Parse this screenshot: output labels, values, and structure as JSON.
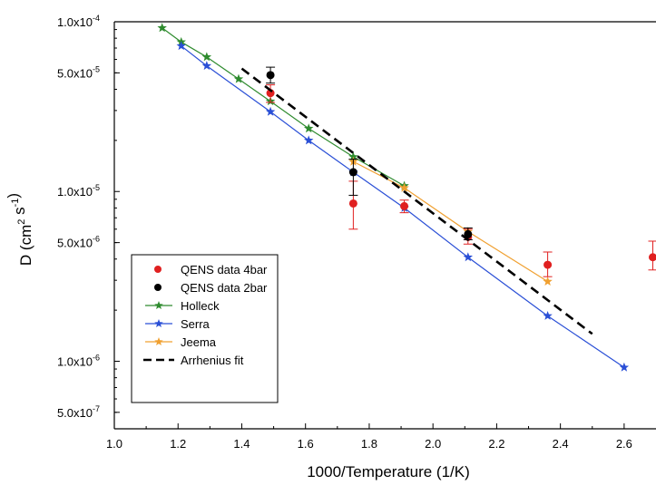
{
  "chart_data": {
    "type": "scatter",
    "title": "",
    "xlabel": "1000/Temperature (1/K)",
    "ylabel_base": "D (cm",
    "ylabel_sup1": "2",
    "ylabel_mid": " s",
    "ylabel_sup2": "-1",
    "ylabel_end": ")",
    "xlim": [
      1.0,
      2.7
    ],
    "ylim": [
      4e-07,
      0.0001
    ],
    "yscale": "log",
    "grid": false,
    "legend_position": "bottom-left",
    "x_ticks": [
      {
        "value": 1.0,
        "label": "1.0"
      },
      {
        "value": 1.2,
        "label": "1.2"
      },
      {
        "value": 1.4,
        "label": "1.4"
      },
      {
        "value": 1.6,
        "label": "1.6"
      },
      {
        "value": 1.8,
        "label": "1.8"
      },
      {
        "value": 2.0,
        "label": "2.0"
      },
      {
        "value": 2.2,
        "label": "2.2"
      },
      {
        "value": 2.4,
        "label": "2.4"
      },
      {
        "value": 2.6,
        "label": "2.6"
      }
    ],
    "y_ticks": [
      {
        "value": 0.0001,
        "label": "1.0x10",
        "exp": "-4"
      },
      {
        "value": 5e-05,
        "label": "5.0x10",
        "exp": "-5"
      },
      {
        "value": 1e-05,
        "label": "1.0x10",
        "exp": "-5"
      },
      {
        "value": 5e-06,
        "label": "5.0x10",
        "exp": "-6"
      },
      {
        "value": 1e-06,
        "label": "1.0x10",
        "exp": "-6"
      },
      {
        "value": 5e-07,
        "label": "5.0x10",
        "exp": "-7"
      }
    ],
    "series": [
      {
        "name": "Holleck",
        "style": "line-star",
        "color": "#2e8b2e",
        "x": [
          1.15,
          1.21,
          1.29,
          1.39,
          1.49,
          1.61,
          1.75,
          1.91
        ],
        "y": [
          9.2e-05,
          7.6e-05,
          6.2e-05,
          4.6e-05,
          3.4e-05,
          2.35e-05,
          1.6e-05,
          1.08e-05
        ]
      },
      {
        "name": "Serra",
        "style": "line-star",
        "color": "#2a4fd6",
        "x": [
          1.21,
          1.29,
          1.49,
          1.61,
          1.75,
          1.91,
          2.11,
          2.36,
          2.6
        ],
        "y": [
          7.2e-05,
          5.5e-05,
          2.95e-05,
          2e-05,
          1.3e-05,
          8e-06,
          4.1e-06,
          1.85e-06,
          9.2e-07
        ]
      },
      {
        "name": "Jeema",
        "style": "line-star",
        "color": "#f0a030",
        "x": [
          1.75,
          1.91,
          2.11,
          2.36
        ],
        "y": [
          1.5e-05,
          1.05e-05,
          5.8e-06,
          2.95e-06
        ]
      },
      {
        "name": "QENS data 4bar",
        "style": "marker-errorbar",
        "color": "#e02020",
        "x": [
          1.49,
          1.75,
          1.91,
          2.11,
          2.36,
          2.69
        ],
        "y": [
          3.8e-05,
          8.5e-06,
          8.2e-06,
          5.4e-06,
          3.7e-06,
          4.1e-06
        ],
        "err_low": [
          3.35e-05,
          6e-06,
          7.5e-06,
          4.9e-06,
          3.15e-06,
          3.45e-06
        ],
        "err_high": [
          4.25e-05,
          1.15e-05,
          8.9e-06,
          6e-06,
          4.4e-06,
          5.1e-06
        ]
      },
      {
        "name": "QENS data 2bar",
        "style": "marker-errorbar",
        "color": "#000000",
        "x": [
          1.49,
          1.75,
          2.11
        ],
        "y": [
          4.85e-05,
          1.3e-05,
          5.6e-06
        ],
        "err_low": [
          4.35e-05,
          9.5e-06,
          5.2e-06
        ],
        "err_high": [
          5.4e-05,
          1.55e-05,
          6.1e-06
        ]
      },
      {
        "name": "Arrhenius fit",
        "style": "dashed-line",
        "color": "#000000",
        "x": [
          1.4,
          2.5
        ],
        "y": [
          5.3e-05,
          1.45e-06
        ]
      }
    ]
  }
}
